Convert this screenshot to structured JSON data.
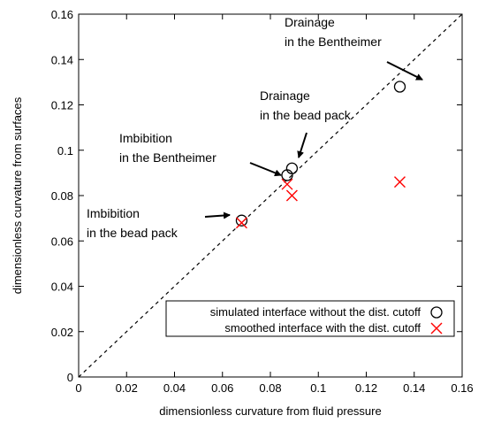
{
  "chart_data": {
    "type": "scatter",
    "xlabel": "dimensionless curvature from fluid pressure",
    "ylabel": "dimensionless curvature from surfaces",
    "xlim": [
      0,
      0.16
    ],
    "ylim": [
      0,
      0.16
    ],
    "x_ticks": [
      "0",
      "0.02",
      "0.04",
      "0.06",
      "0.08",
      "0.1",
      "0.12",
      "0.14",
      "0.16"
    ],
    "y_ticks": [
      "0",
      "0.02",
      "0.04",
      "0.06",
      "0.08",
      "0.1",
      "0.12",
      "0.14",
      "0.16"
    ],
    "grid": false,
    "legend_placement": "lower-right",
    "reference_line": {
      "style": "dashed",
      "from": [
        0,
        0
      ],
      "to": [
        0.16,
        0.16
      ]
    },
    "series": [
      {
        "name": "simulated interface without the dist. cutoff",
        "marker": "circle",
        "color": "#000000",
        "points": [
          {
            "x": 0.068,
            "y": 0.069
          },
          {
            "x": 0.087,
            "y": 0.089
          },
          {
            "x": 0.089,
            "y": 0.092
          },
          {
            "x": 0.134,
            "y": 0.128
          }
        ]
      },
      {
        "name": "smoothed interface with the dist. cutoff",
        "marker": "x",
        "color": "#ff0000",
        "points": [
          {
            "x": 0.068,
            "y": 0.068
          },
          {
            "x": 0.087,
            "y": 0.085
          },
          {
            "x": 0.089,
            "y": 0.08
          },
          {
            "x": 0.134,
            "y": 0.086
          }
        ]
      }
    ],
    "annotations": [
      {
        "lines": [
          "Drainage",
          "in the Bentheimer"
        ],
        "target": {
          "x": 0.134,
          "y": 0.128
        }
      },
      {
        "lines": [
          "Drainage",
          "in the bead pack"
        ],
        "target": {
          "x": 0.089,
          "y": 0.092
        }
      },
      {
        "lines": [
          "Imbibition",
          "in the Bentheimer"
        ],
        "target": {
          "x": 0.087,
          "y": 0.089
        }
      },
      {
        "lines": [
          "Imbibition",
          "in the bead pack"
        ],
        "target": {
          "x": 0.068,
          "y": 0.069
        }
      }
    ]
  }
}
